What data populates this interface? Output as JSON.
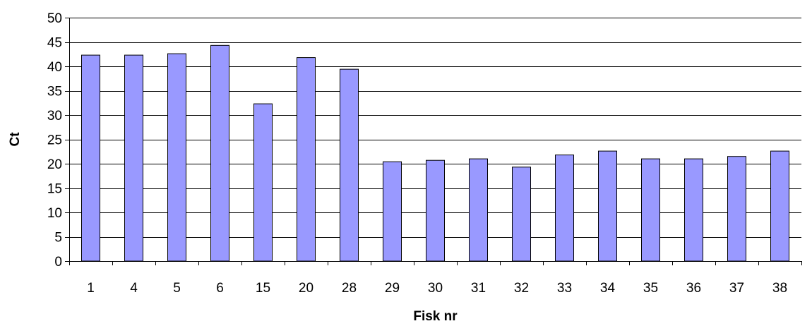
{
  "chart_data": {
    "type": "bar",
    "title": "",
    "xlabel": "Fisk nr",
    "ylabel": "Ct",
    "categories": [
      "1",
      "4",
      "5",
      "6",
      "15",
      "20",
      "28",
      "29",
      "30",
      "31",
      "32",
      "33",
      "34",
      "35",
      "36",
      "37",
      "38"
    ],
    "values": [
      42.3,
      42.3,
      42.6,
      44.3,
      32.3,
      41.8,
      39.4,
      20.4,
      20.7,
      21.0,
      19.3,
      21.8,
      22.6,
      21.0,
      21.0,
      21.5,
      22.6
    ],
    "ylim": [
      0,
      50
    ],
    "yticks": [
      0,
      5,
      10,
      15,
      20,
      25,
      30,
      35,
      40,
      45,
      50
    ],
    "grid": true,
    "legend": false,
    "colors": {
      "bar_fill": "#9999ff",
      "bar_stroke": "#000000",
      "grid": "#000000",
      "axis": "#000000"
    }
  }
}
